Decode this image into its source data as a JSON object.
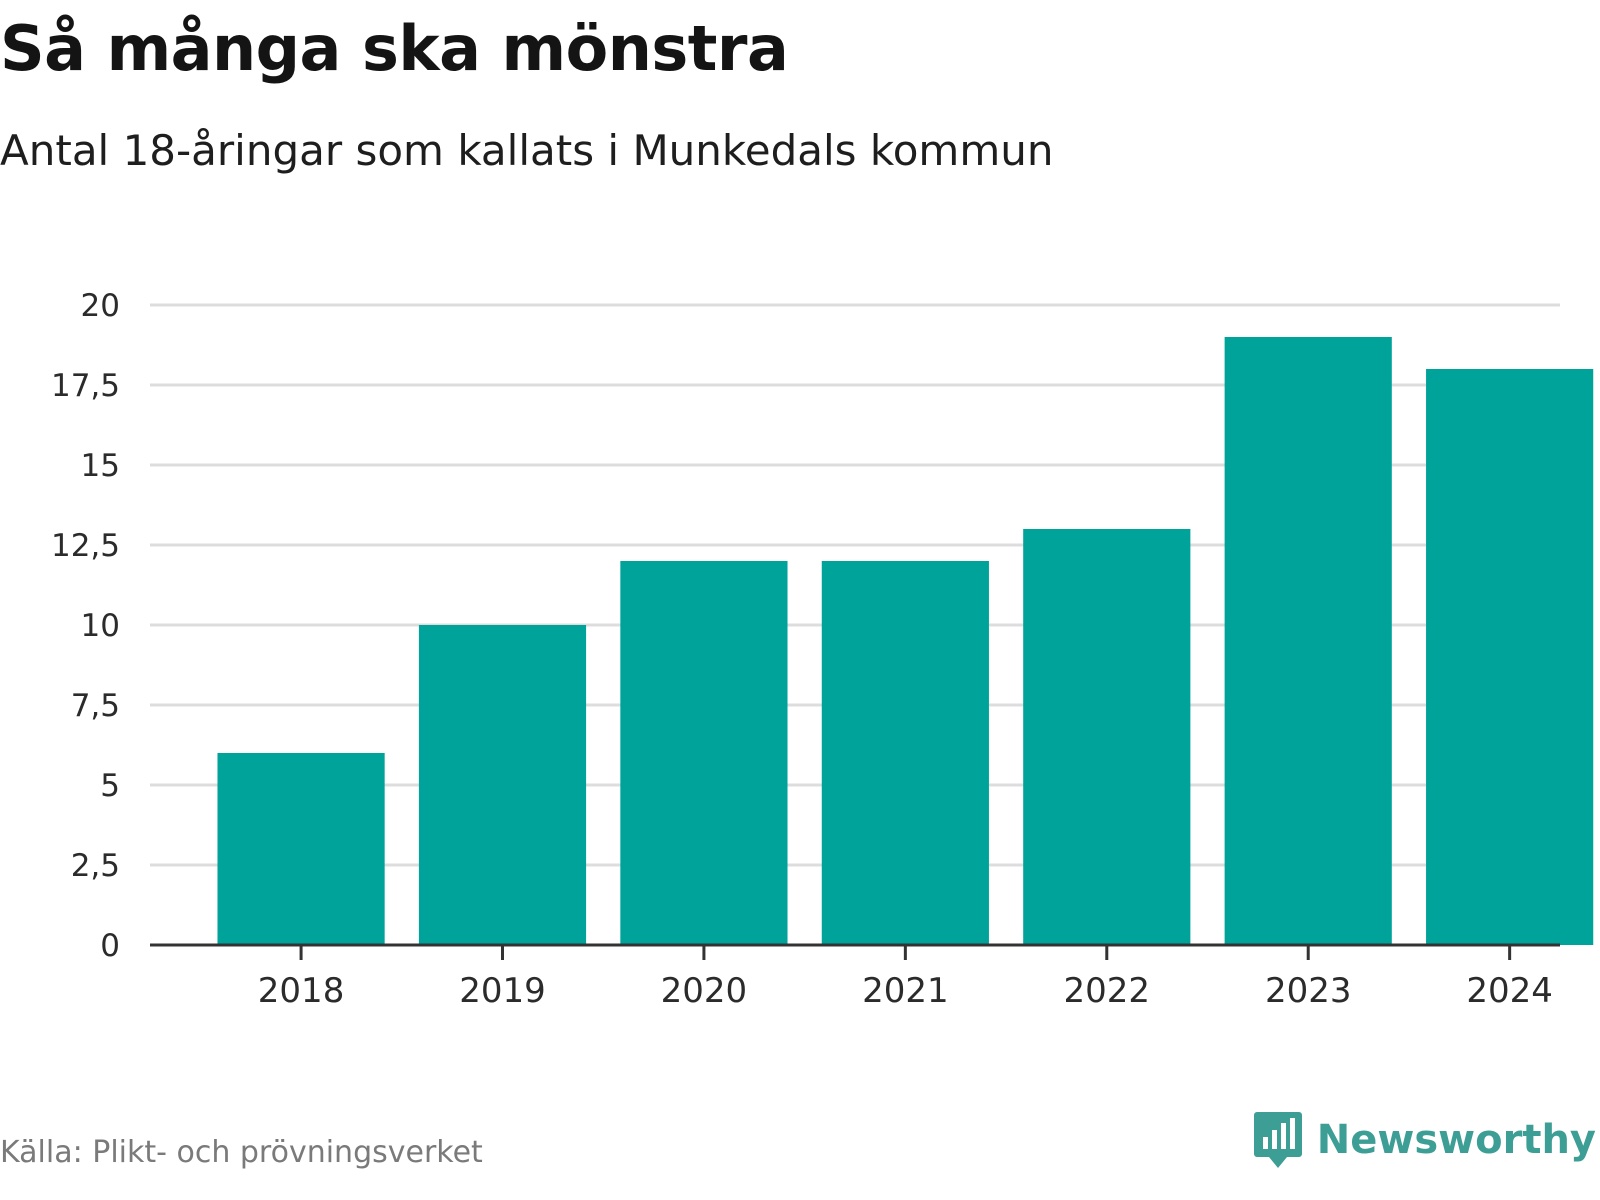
{
  "header": {
    "title": "Så många ska mönstra",
    "subtitle": "Antal 18-åringar som kallats i Munkedals kommun"
  },
  "chart_data": {
    "type": "bar",
    "title": "Så många ska mönstra",
    "subtitle": "Antal 18-åringar som kallats i Munkedals kommun",
    "categories": [
      "2018",
      "2019",
      "2020",
      "2021",
      "2022",
      "2023",
      "2024"
    ],
    "values": [
      6,
      10,
      12,
      12,
      13,
      19,
      18
    ],
    "xlabel": "",
    "ylabel": "",
    "ylim": [
      0,
      20
    ],
    "yticks": [
      0,
      2.5,
      5,
      7.5,
      10,
      12.5,
      15,
      17.5,
      20
    ],
    "ytick_labels": [
      "0",
      "2,5",
      "5",
      "7,5",
      "10",
      "12,5",
      "15",
      "17,5",
      "20"
    ],
    "grid": true,
    "bar_color": "#00a39a",
    "grid_color": "#dddddd",
    "axis_color": "#333333"
  },
  "footer": {
    "source": "Källa: Plikt- och prövningsverket",
    "brand": "Newsworthy",
    "brand_icon": "newsworthy-logo-icon",
    "brand_color": "#3d9e95"
  }
}
